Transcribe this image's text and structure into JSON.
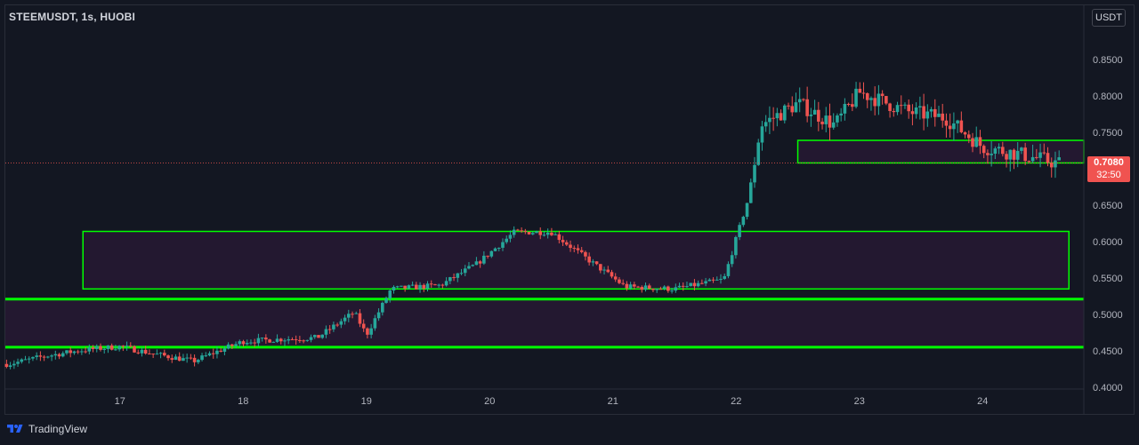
{
  "header": {
    "symbol_line": "STEEMUSDT, 1s, HUOBI",
    "currency": "USDT"
  },
  "price_tag": {
    "price": "0.7080",
    "countdown": "32:50"
  },
  "footer": {
    "brand": "TradingView"
  },
  "colors": {
    "background": "#131722",
    "up": "#26a69a",
    "down": "#ef5350",
    "zone_fill": "#2a1a36",
    "zone_border": "#00ff00"
  },
  "chart_data": {
    "type": "candlestick",
    "title": "",
    "xlabel": "",
    "ylabel": "",
    "ylim": [
      0.4,
      0.9
    ],
    "y_ticks": [
      "0.4000",
      "0.4500",
      "0.5000",
      "0.5500",
      "0.6000",
      "0.6500",
      "0.7000",
      "0.7500",
      "0.8000",
      "0.8500"
    ],
    "x_ticks": [
      "17",
      "18",
      "19",
      "20",
      "21",
      "22",
      "23",
      "24"
    ],
    "x_range": [
      16.07,
      24.88
    ],
    "last_price": 0.708,
    "grid": false,
    "candles_day_close": [
      {
        "day": 16.1,
        "close": 0.432
      },
      {
        "day": 16.4,
        "close": 0.443
      },
      {
        "day": 16.7,
        "close": 0.451
      },
      {
        "day": 17.0,
        "close": 0.456
      },
      {
        "day": 17.3,
        "close": 0.445
      },
      {
        "day": 17.6,
        "close": 0.436
      },
      {
        "day": 17.8,
        "close": 0.45
      },
      {
        "day": 18.0,
        "close": 0.463
      },
      {
        "day": 18.3,
        "close": 0.466
      },
      {
        "day": 18.6,
        "close": 0.468
      },
      {
        "day": 18.9,
        "close": 0.503
      },
      {
        "day": 19.0,
        "close": 0.472
      },
      {
        "day": 19.2,
        "close": 0.535
      },
      {
        "day": 19.6,
        "close": 0.54
      },
      {
        "day": 19.9,
        "close": 0.57
      },
      {
        "day": 20.2,
        "close": 0.613
      },
      {
        "day": 20.5,
        "close": 0.613
      },
      {
        "day": 20.8,
        "close": 0.575
      },
      {
        "day": 21.1,
        "close": 0.538
      },
      {
        "day": 21.5,
        "close": 0.535
      },
      {
        "day": 21.9,
        "close": 0.548
      },
      {
        "day": 22.1,
        "close": 0.66
      },
      {
        "day": 22.2,
        "close": 0.76
      },
      {
        "day": 22.5,
        "close": 0.79
      },
      {
        "day": 22.8,
        "close": 0.76
      },
      {
        "day": 23.0,
        "close": 0.805
      },
      {
        "day": 23.4,
        "close": 0.778
      },
      {
        "day": 23.7,
        "close": 0.77
      },
      {
        "day": 24.0,
        "close": 0.73
      },
      {
        "day": 24.3,
        "close": 0.72
      },
      {
        "day": 24.6,
        "close": 0.708
      }
    ],
    "zones": [
      {
        "low": 0.708,
        "high": 0.739,
        "from_day": 22.5,
        "to": "right-edge"
      },
      {
        "low": 0.535,
        "high": 0.614,
        "from_day": 16.7,
        "to_day": 24.7
      },
      {
        "low": 0.455,
        "high": 0.521,
        "from": "left-edge",
        "to": "right-edge"
      }
    ]
  }
}
